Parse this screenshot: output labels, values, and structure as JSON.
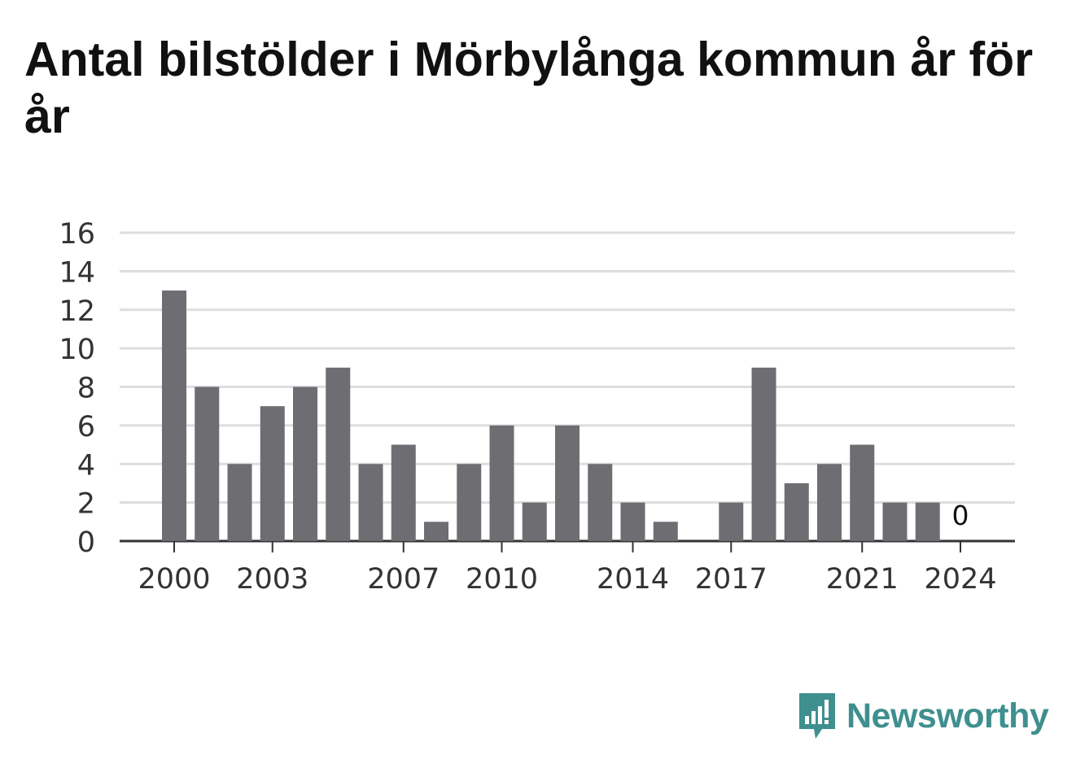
{
  "title": "Antal bilstölder i Mörbylånga kommun år för år",
  "brand": {
    "name": "Newsworthy",
    "color": "#3f8f8f",
    "icon": "newsworthy-logo-icon"
  },
  "colors": {
    "bar": "#6e6d72",
    "grid": "#dddddd",
    "axis": "#333333",
    "text": "#333333"
  },
  "chart_data": {
    "type": "bar",
    "title": "Antal bilstölder i Mörbylånga kommun år för år",
    "xlabel": "",
    "ylabel": "",
    "ylim": [
      0,
      16
    ],
    "yticks": [
      0,
      2,
      4,
      6,
      8,
      10,
      12,
      14,
      16
    ],
    "xticks": [
      "2000",
      "2003",
      "2007",
      "2010",
      "2014",
      "2017",
      "2021",
      "2024"
    ],
    "grid": true,
    "categories": [
      "2000",
      "2001",
      "2002",
      "2003",
      "2004",
      "2005",
      "2006",
      "2007",
      "2008",
      "2009",
      "2010",
      "2011",
      "2012",
      "2013",
      "2014",
      "2015",
      "2016",
      "2017",
      "2018",
      "2019",
      "2020",
      "2021",
      "2022",
      "2023",
      "2024"
    ],
    "values": [
      13,
      8,
      4,
      7,
      8,
      9,
      4,
      5,
      1,
      4,
      6,
      2,
      6,
      4,
      2,
      1,
      0,
      2,
      9,
      3,
      4,
      5,
      2,
      2,
      0
    ],
    "annotations": [
      {
        "category": "2024",
        "text": "0"
      }
    ]
  }
}
